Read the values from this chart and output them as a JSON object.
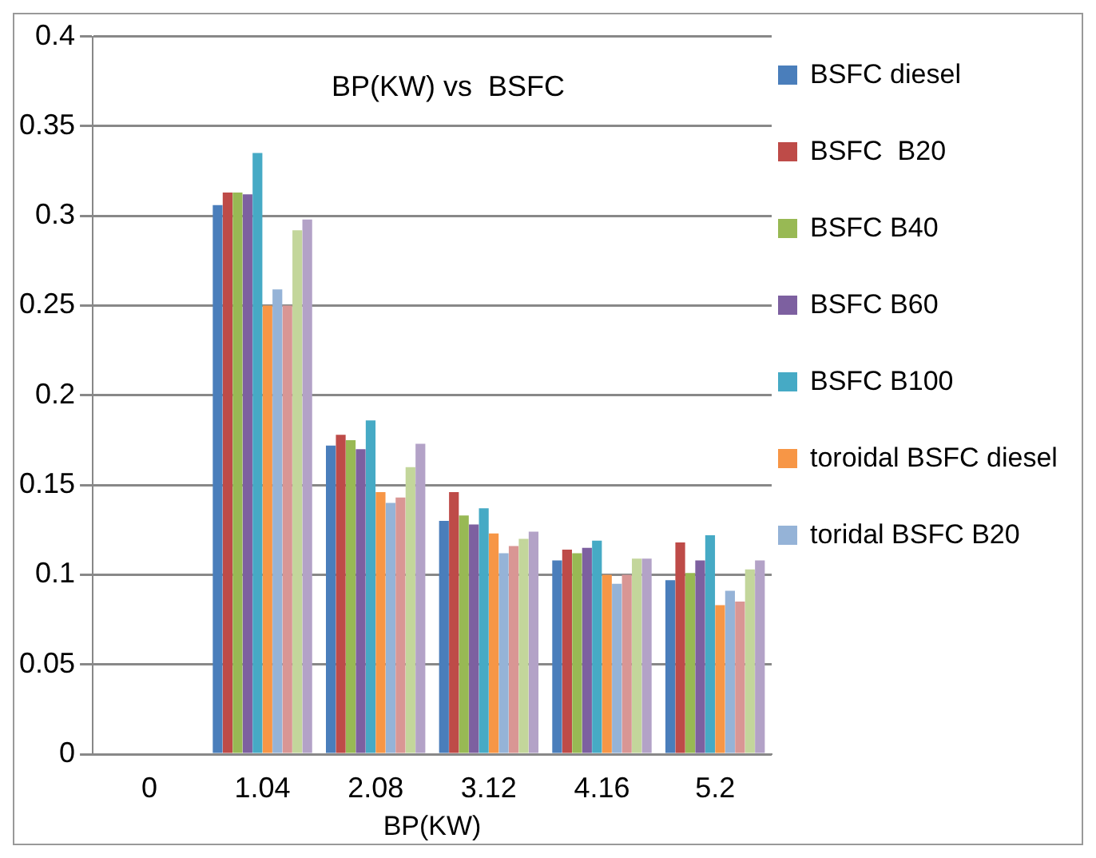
{
  "chart_data": {
    "type": "bar",
    "title": "BP(KW) vs  BSFC",
    "xlabel": "BP(KW)",
    "categories": [
      "0",
      "1.04",
      "2.08",
      "3.12",
      "4.16",
      "5.2"
    ],
    "series": [
      {
        "name": "BSFC diesel",
        "color": "#4a7ebb",
        "values": [
          0,
          0.306,
          0.172,
          0.13,
          0.108,
          0.097
        ]
      },
      {
        "name": "BSFC  B20",
        "color": "#be4b48",
        "values": [
          0,
          0.313,
          0.178,
          0.146,
          0.114,
          0.118
        ]
      },
      {
        "name": "BSFC B40",
        "color": "#98b954",
        "values": [
          0,
          0.313,
          0.175,
          0.133,
          0.112,
          0.101
        ]
      },
      {
        "name": "BSFC B60",
        "color": "#7d60a0",
        "values": [
          0,
          0.312,
          0.17,
          0.128,
          0.115,
          0.108
        ]
      },
      {
        "name": "BSFC B100",
        "color": "#46aac5",
        "values": [
          0,
          0.335,
          0.186,
          0.137,
          0.119,
          0.122
        ]
      },
      {
        "name": "toroidal BSFC diesel",
        "color": "#f79646",
        "values": [
          0,
          0.25,
          0.146,
          0.123,
          0.1,
          0.083
        ]
      },
      {
        "name": "toridal BSFC B20",
        "color": "#95b3d7",
        "values": [
          0,
          0.259,
          0.14,
          0.112,
          0.095,
          0.091
        ]
      },
      {
        "color": "#d99694",
        "values": [
          0,
          0.25,
          0.143,
          0.116,
          0.1,
          0.085
        ]
      },
      {
        "color": "#c3d69b",
        "values": [
          0,
          0.292,
          0.16,
          0.12,
          0.109,
          0.103
        ]
      },
      {
        "color": "#b3a2c7",
        "values": [
          0,
          0.298,
          0.173,
          0.124,
          0.109,
          0.108
        ]
      }
    ],
    "ylim": [
      0,
      0.4
    ],
    "yticks": [
      0,
      0.05,
      0.1,
      0.15,
      0.2,
      0.25,
      0.3,
      0.35,
      0.4
    ],
    "grid": "y",
    "legend": "right"
  }
}
